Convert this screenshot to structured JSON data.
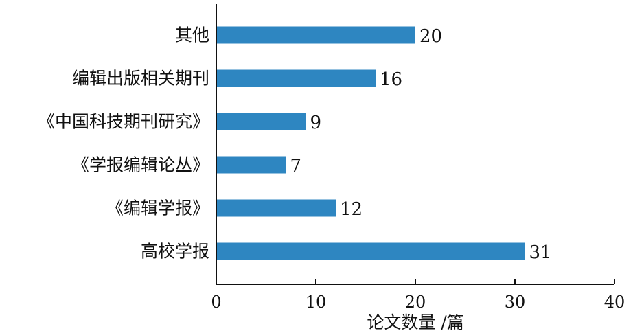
{
  "chart_data": {
    "type": "bar",
    "orientation": "horizontal",
    "categories": [
      "其他",
      "编辑出版相关期刊",
      "《中国科技期刊研究》",
      "《学报编辑论丛》",
      "《编辑学报》",
      "高校学报"
    ],
    "values": [
      20,
      16,
      9,
      7,
      12,
      31
    ],
    "xlabel": "论文数量 /篇",
    "ylabel": "",
    "xlim": [
      0,
      40
    ],
    "xticks": [
      0,
      10,
      20,
      30,
      40
    ],
    "grid": false,
    "legend": "none",
    "bar_color": "#2e86c1"
  }
}
